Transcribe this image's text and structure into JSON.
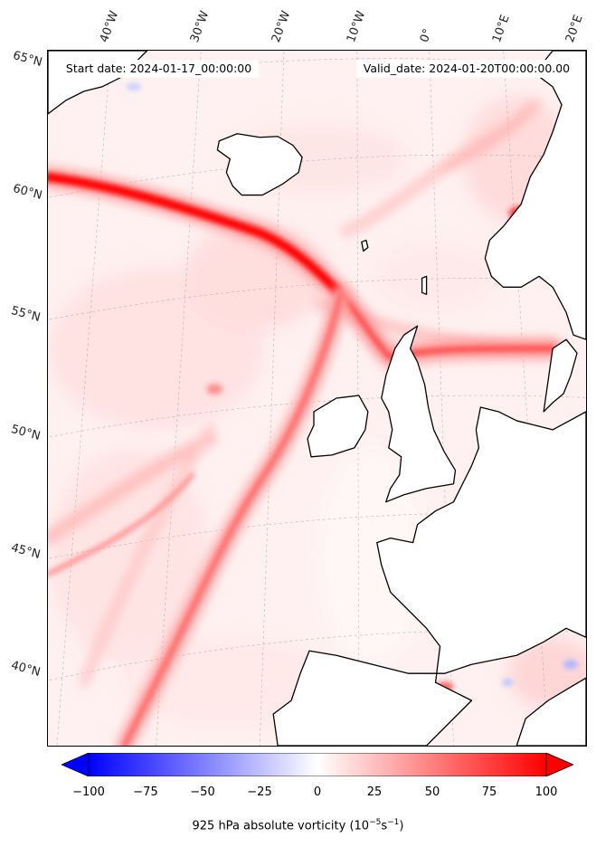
{
  "map": {
    "start_date": "Start date: 2024-01-17_00:00:00",
    "valid_date": "Valid_date: 2024-01-20T00:00:00.00",
    "lon_labels": [
      "40°W",
      "30°W",
      "20°W",
      "10°W",
      "0°",
      "10°E",
      "20°E"
    ],
    "lat_labels": [
      "65°N",
      "60°N",
      "55°N",
      "50°N",
      "45°N",
      "40°N"
    ],
    "projection": "conic",
    "gridlines": true,
    "colormap": "bwr",
    "colors": {
      "land_outline": "#000000",
      "max_positive": "#ff0000",
      "max_negative": "#0000ff",
      "background": "#fff3f3"
    }
  },
  "colorbar": {
    "min": -100,
    "max": 100,
    "ticks": [
      "−100",
      "−75",
      "−50",
      "−25",
      "0",
      "25",
      "50",
      "75",
      "100"
    ],
    "label_prefix": "925 hPa absolute vorticity (10",
    "label_exp1": "−5",
    "label_mid": "s",
    "label_exp2": "−1",
    "label_suffix": ")",
    "extend": "both"
  }
}
